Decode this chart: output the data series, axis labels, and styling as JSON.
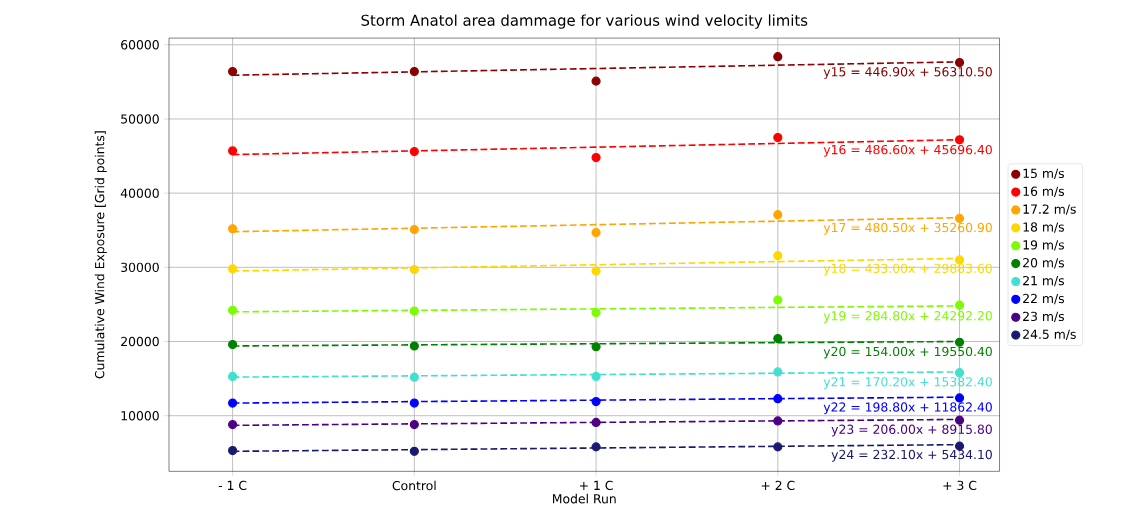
{
  "chart_data": {
    "type": "scatter",
    "title": "Storm Anatol area dammage for various wind velocity limits",
    "xlabel": "Model Run",
    "ylabel": "Cumulative Wind Exposure [Grid points]",
    "categories": [
      "- 1 C",
      "Control",
      "+ 1 C",
      "+ 2 C",
      "+ 3 C"
    ],
    "ylim": [
      2500,
      60900
    ],
    "yticks": [
      10000,
      20000,
      30000,
      40000,
      50000,
      60000
    ],
    "grid": true,
    "legend": "right",
    "series": [
      {
        "name": "15 m/s",
        "color": "#8b0000",
        "marker": "circle",
        "values": [
          56400,
          56400,
          55100,
          58400,
          57600
        ]
      },
      {
        "name": "16 m/s",
        "color": "#ff0000",
        "marker": "circle",
        "values": [
          45700,
          45600,
          44800,
          47500,
          47200
        ]
      },
      {
        "name": "17.2 m/s",
        "color": "#ffa500",
        "marker": "circle",
        "values": [
          35200,
          35100,
          34700,
          37100,
          36600
        ]
      },
      {
        "name": "18 m/s",
        "color": "#ffd700",
        "marker": "circle",
        "values": [
          29800,
          29700,
          29500,
          31600,
          31000
        ]
      },
      {
        "name": "19 m/s",
        "color": "#7cfc00",
        "marker": "circle",
        "values": [
          24200,
          24100,
          23900,
          25600,
          24900
        ]
      },
      {
        "name": "20 m/s",
        "color": "#008000",
        "marker": "circle",
        "values": [
          19600,
          19400,
          19300,
          20400,
          19900
        ]
      },
      {
        "name": "21 m/s",
        "color": "#40e0d0",
        "marker": "circle",
        "values": [
          15300,
          15200,
          15300,
          15900,
          15800
        ]
      },
      {
        "name": "22 m/s",
        "color": "#0000ff",
        "marker": "circle",
        "values": [
          11700,
          11700,
          11900,
          12300,
          12400
        ]
      },
      {
        "name": "23 m/s",
        "color": "#4b0082",
        "marker": "circle",
        "values": [
          8800,
          8800,
          9100,
          9300,
          9400
        ]
      },
      {
        "name": "24.5 m/s",
        "color": "#191970",
        "marker": "circle",
        "values": [
          5300,
          5200,
          5800,
          5800,
          5900
        ]
      },
      {
        "name": "y15 = 446.90x + 56310.50",
        "type": "line",
        "line_style": "dashed",
        "color": "#8b0000",
        "x": [
          "- 1 C",
          "+ 3 C"
        ],
        "values": [
          55900,
          57700
        ]
      },
      {
        "name": "y16 = 486.60x + 45696.40",
        "type": "line",
        "line_style": "dashed",
        "color": "#ff0000",
        "x": [
          "- 1 C",
          "+ 3 C"
        ],
        "values": [
          45200,
          47200
        ]
      },
      {
        "name": "y17 = 480.50x + 35260.90",
        "type": "line",
        "line_style": "dashed",
        "color": "#ffa500",
        "x": [
          "- 1 C",
          "+ 3 C"
        ],
        "values": [
          34800,
          36700
        ]
      },
      {
        "name": "y18 = 433.00x + 29883.60",
        "type": "line",
        "line_style": "dashed",
        "color": "#ffd700",
        "x": [
          "- 1 C",
          "+ 3 C"
        ],
        "values": [
          29500,
          31200
        ]
      },
      {
        "name": "y19 = 284.80x + 24292.20",
        "type": "line",
        "line_style": "dashed",
        "color": "#7cfc00",
        "x": [
          "- 1 C",
          "+ 3 C"
        ],
        "values": [
          24000,
          24800
        ]
      },
      {
        "name": "y20 = 154.00x + 19550.40",
        "type": "line",
        "line_style": "dashed",
        "color": "#008000",
        "x": [
          "- 1 C",
          "+ 3 C"
        ],
        "values": [
          19400,
          20000
        ]
      },
      {
        "name": "y21 = 170.20x + 15382.40",
        "type": "line",
        "line_style": "dashed",
        "color": "#40e0d0",
        "x": [
          "- 1 C",
          "+ 3 C"
        ],
        "values": [
          15200,
          15900
        ]
      },
      {
        "name": "y22 = 198.80x + 11862.40",
        "type": "line",
        "line_style": "dashed",
        "color": "#0000ff",
        "x": [
          "- 1 C",
          "+ 3 C"
        ],
        "values": [
          11700,
          12500
        ]
      },
      {
        "name": "y23 = 206.00x + 8915.80",
        "type": "line",
        "line_style": "dashed",
        "color": "#4b0082",
        "x": [
          "- 1 C",
          "+ 3 C"
        ],
        "values": [
          8700,
          9500
        ]
      },
      {
        "name": "y24 = 232.10x + 5434.10",
        "type": "line",
        "line_style": "dashed",
        "color": "#191970",
        "x": [
          "- 1 C",
          "+ 3 C"
        ],
        "values": [
          5200,
          6100
        ]
      }
    ]
  }
}
